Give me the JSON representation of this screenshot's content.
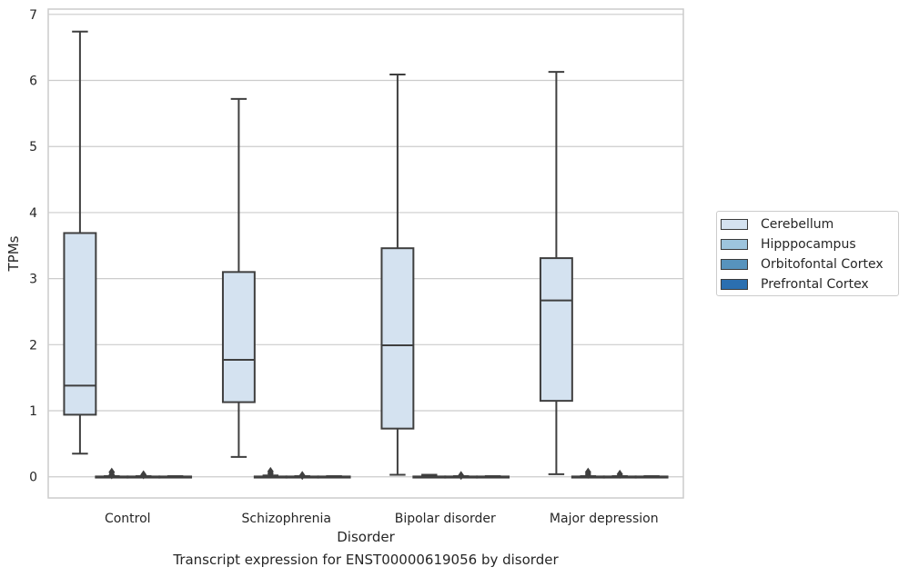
{
  "caption": "Transcript expression for ENST00000619056 by disorder",
  "chart_data": {
    "type": "box",
    "xlabel": "Disorder",
    "ylabel": "TPMs",
    "ylim": [
      -0.32,
      7.08
    ],
    "yticks": [
      0,
      1,
      2,
      3,
      4,
      5,
      6,
      7
    ],
    "grid": "horizontal",
    "legend_position": "right",
    "categories": [
      "Control",
      "Schizophrenia",
      "Bipolar disorder",
      "Major depression"
    ],
    "series": [
      {
        "name": "Cerebellum",
        "color": "#d4e2f0",
        "boxes": [
          {
            "whisker_low": 0.35,
            "q1": 0.94,
            "median": 1.38,
            "q3": 3.69,
            "whisker_high": 6.74,
            "outliers": []
          },
          {
            "whisker_low": 0.3,
            "q1": 1.13,
            "median": 1.77,
            "q3": 3.1,
            "whisker_high": 5.72,
            "outliers": []
          },
          {
            "whisker_low": 0.03,
            "q1": 0.73,
            "median": 1.99,
            "q3": 3.46,
            "whisker_high": 6.09,
            "outliers": []
          },
          {
            "whisker_low": 0.04,
            "q1": 1.15,
            "median": 2.67,
            "q3": 3.31,
            "whisker_high": 6.13,
            "outliers": []
          }
        ]
      },
      {
        "name": "Hipppocampus",
        "color": "#9dc4dd",
        "boxes": [
          {
            "whisker_low": 0,
            "q1": 0,
            "median": 0,
            "q3": 0.005,
            "whisker_high": 0.01,
            "outliers": [
              0.03,
              0.07
            ]
          },
          {
            "whisker_low": 0,
            "q1": 0,
            "median": 0,
            "q3": 0.005,
            "whisker_high": 0.02,
            "outliers": [
              0.05,
              0.08
            ]
          },
          {
            "whisker_low": 0,
            "q1": 0,
            "median": 0,
            "q3": 0.005,
            "whisker_high": 0.03,
            "outliers": []
          },
          {
            "whisker_low": 0,
            "q1": 0,
            "median": 0,
            "q3": 0.005,
            "whisker_high": 0.01,
            "outliers": [
              0.04,
              0.07
            ]
          }
        ]
      },
      {
        "name": "Orbitofontal Cortex",
        "color": "#5793bd",
        "boxes": [
          {
            "whisker_low": 0,
            "q1": 0,
            "median": 0,
            "q3": 0.005,
            "whisker_high": 0.01,
            "outliers": [
              0.03
            ]
          },
          {
            "whisker_low": 0,
            "q1": 0,
            "median": 0,
            "q3": 0.005,
            "whisker_high": 0.01,
            "outliers": [
              0.02
            ]
          },
          {
            "whisker_low": 0,
            "q1": 0,
            "median": 0,
            "q3": 0.005,
            "whisker_high": 0.01,
            "outliers": [
              0.02
            ]
          },
          {
            "whisker_low": 0,
            "q1": 0,
            "median": 0,
            "q3": 0.005,
            "whisker_high": 0.01,
            "outliers": [
              0.04
            ]
          }
        ]
      },
      {
        "name": "Prefrontal Cortex",
        "color": "#2b6fb0",
        "boxes": [
          {
            "whisker_low": 0,
            "q1": 0,
            "median": 0,
            "q3": 0.005,
            "whisker_high": 0.01,
            "outliers": []
          },
          {
            "whisker_low": 0,
            "q1": 0,
            "median": 0,
            "q3": 0.005,
            "whisker_high": 0.01,
            "outliers": []
          },
          {
            "whisker_low": 0,
            "q1": 0,
            "median": 0,
            "q3": 0.005,
            "whisker_high": 0.01,
            "outliers": []
          },
          {
            "whisker_low": 0,
            "q1": 0,
            "median": 0,
            "q3": 0.005,
            "whisker_high": 0.01,
            "outliers": []
          }
        ]
      }
    ]
  }
}
